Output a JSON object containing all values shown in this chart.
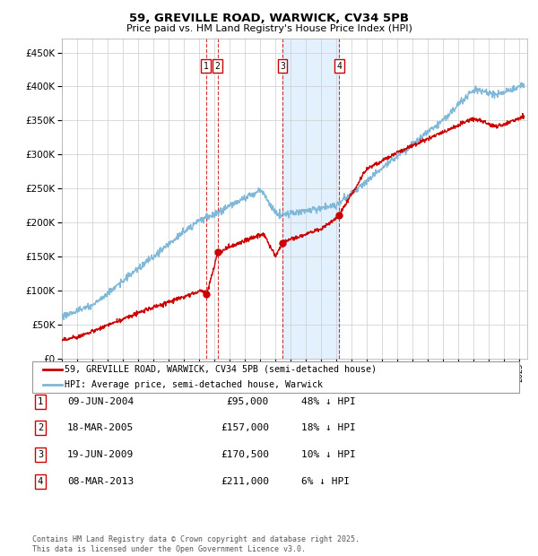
{
  "title": "59, GREVILLE ROAD, WARWICK, CV34 5PB",
  "subtitle": "Price paid vs. HM Land Registry's House Price Index (HPI)",
  "ylim": [
    0,
    470000
  ],
  "yticks": [
    0,
    50000,
    100000,
    150000,
    200000,
    250000,
    300000,
    350000,
    400000,
    450000
  ],
  "ytick_labels": [
    "£0",
    "£50K",
    "£100K",
    "£150K",
    "£200K",
    "£250K",
    "£300K",
    "£350K",
    "£400K",
    "£450K"
  ],
  "hpi_color": "#7fb8d8",
  "price_color": "#cc0000",
  "background_color": "#ffffff",
  "grid_color": "#cccccc",
  "sale_markers": [
    {
      "label": "1",
      "date_x": 2004.44,
      "price": 95000,
      "date_str": "09-JUN-2004",
      "price_str": "£95,000",
      "hpi_pct": "48% ↓ HPI"
    },
    {
      "label": "2",
      "date_x": 2005.21,
      "price": 157000,
      "date_str": "18-MAR-2005",
      "price_str": "£157,000",
      "hpi_pct": "18% ↓ HPI"
    },
    {
      "label": "3",
      "date_x": 2009.46,
      "price": 170500,
      "date_str": "19-JUN-2009",
      "price_str": "£170,500",
      "hpi_pct": "10% ↓ HPI"
    },
    {
      "label": "4",
      "date_x": 2013.18,
      "price": 211000,
      "date_str": "08-MAR-2013",
      "price_str": "£211,000",
      "hpi_pct": "6% ↓ HPI"
    }
  ],
  "shade_start": 2009.46,
  "shade_end": 2013.18,
  "footnote": "Contains HM Land Registry data © Crown copyright and database right 2025.\nThis data is licensed under the Open Government Licence v3.0.",
  "legend_line1": "59, GREVILLE ROAD, WARWICK, CV34 5PB (semi-detached house)",
  "legend_line2": "HPI: Average price, semi-detached house, Warwick",
  "xlim_start": 1995,
  "xlim_end": 2025.5
}
